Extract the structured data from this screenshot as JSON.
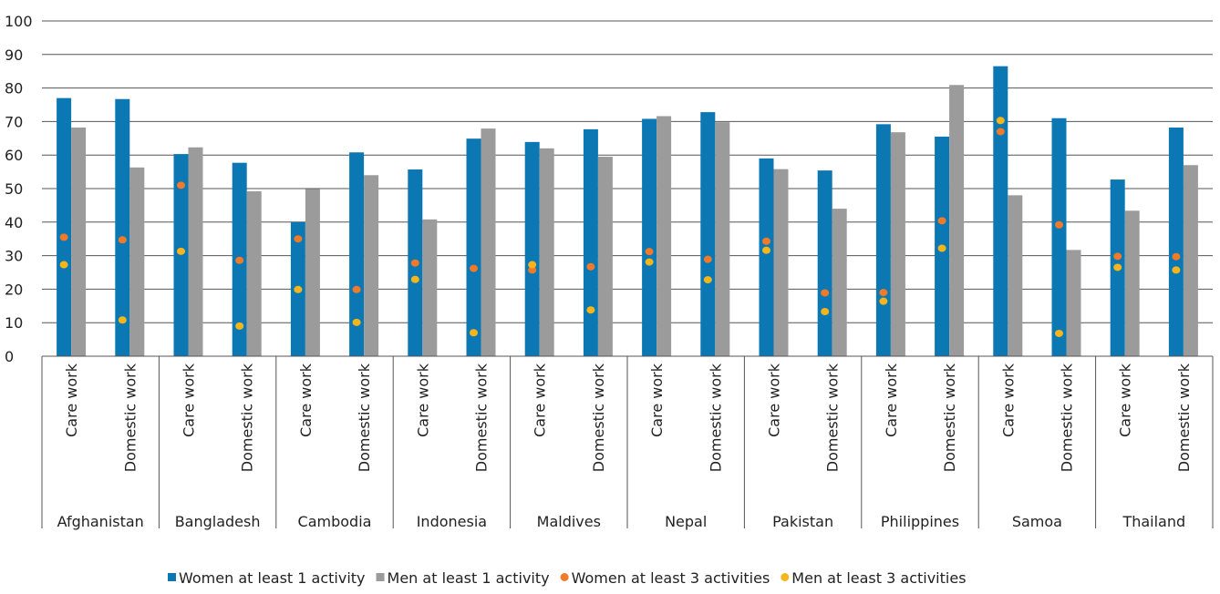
{
  "chart_data": {
    "type": "bar",
    "ylim": [
      0,
      100
    ],
    "y_ticks": [
      0,
      10,
      20,
      30,
      40,
      50,
      60,
      70,
      80,
      90,
      100
    ],
    "grid": true,
    "legend_position": "bottom",
    "groups": [
      "Afghanistan",
      "Bangladesh",
      "Cambodia",
      "Indonesia",
      "Maldives",
      "Nepal",
      "Pakistan",
      "Philippines",
      "Samoa",
      "Thailand"
    ],
    "subcategories": [
      "Care work",
      "Domestic work"
    ],
    "series": [
      {
        "name": "Women at least 1 activity",
        "kind": "bar",
        "color": "#0b78b3",
        "values": [
          77,
          76.7,
          60.3,
          57.7,
          40,
          60.8,
          55.7,
          64.9,
          63.9,
          67.7,
          70.8,
          72.8,
          59,
          55.4,
          69.2,
          65.5,
          86.5,
          71,
          52.7,
          68.2
        ]
      },
      {
        "name": "Men at least 1 activity",
        "kind": "bar",
        "color": "#9b9b9b",
        "values": [
          68.2,
          56.3,
          62.3,
          49.2,
          49.9,
          54,
          40.8,
          67.9,
          62,
          59.5,
          71.6,
          69.8,
          55.8,
          44,
          66.8,
          80.9,
          48,
          31.7,
          43.4,
          57
        ]
      },
      {
        "name": "Women at least 3 activities",
        "kind": "dot",
        "color": "#f07a2a",
        "values": [
          35.5,
          34.7,
          51,
          28.6,
          35,
          19.9,
          27.8,
          26.2,
          25.7,
          26.7,
          31.2,
          28.9,
          34.3,
          18.9,
          19,
          40.4,
          67,
          39.2,
          29.8,
          29.7
        ]
      },
      {
        "name": "Men at least 3 activities",
        "kind": "dot",
        "color": "#f7b51c",
        "values": [
          27.3,
          10.8,
          31.3,
          9,
          19.9,
          10.1,
          22.9,
          7,
          27.3,
          13.8,
          28.1,
          22.8,
          31.6,
          13.3,
          16.4,
          32.2,
          70.3,
          6.8,
          26.5,
          25.7
        ]
      }
    ]
  }
}
